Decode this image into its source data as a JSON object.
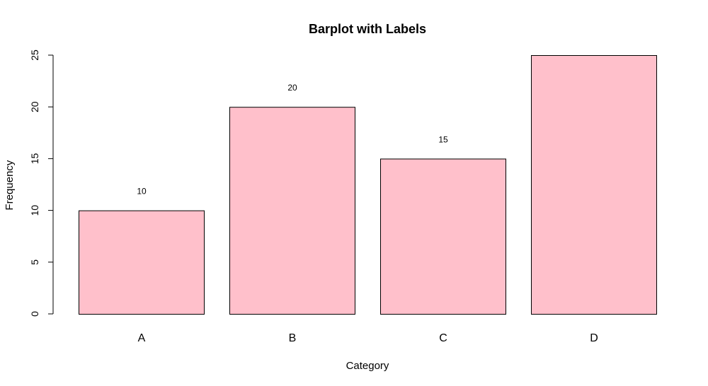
{
  "chart_data": {
    "type": "bar",
    "title": "Barplot with Labels",
    "xlabel": "Category",
    "ylabel": "Frequency",
    "categories": [
      "A",
      "B",
      "C",
      "D"
    ],
    "values": [
      10,
      20,
      15,
      25
    ],
    "data_labels": [
      "10",
      "20",
      "15",
      ""
    ],
    "yticks": [
      0,
      5,
      10,
      15,
      20,
      25
    ],
    "ylim": [
      0,
      25
    ],
    "bar_color": "#ffc0cb",
    "bar_border_color": "#000000",
    "grid": false,
    "legend": "none"
  }
}
